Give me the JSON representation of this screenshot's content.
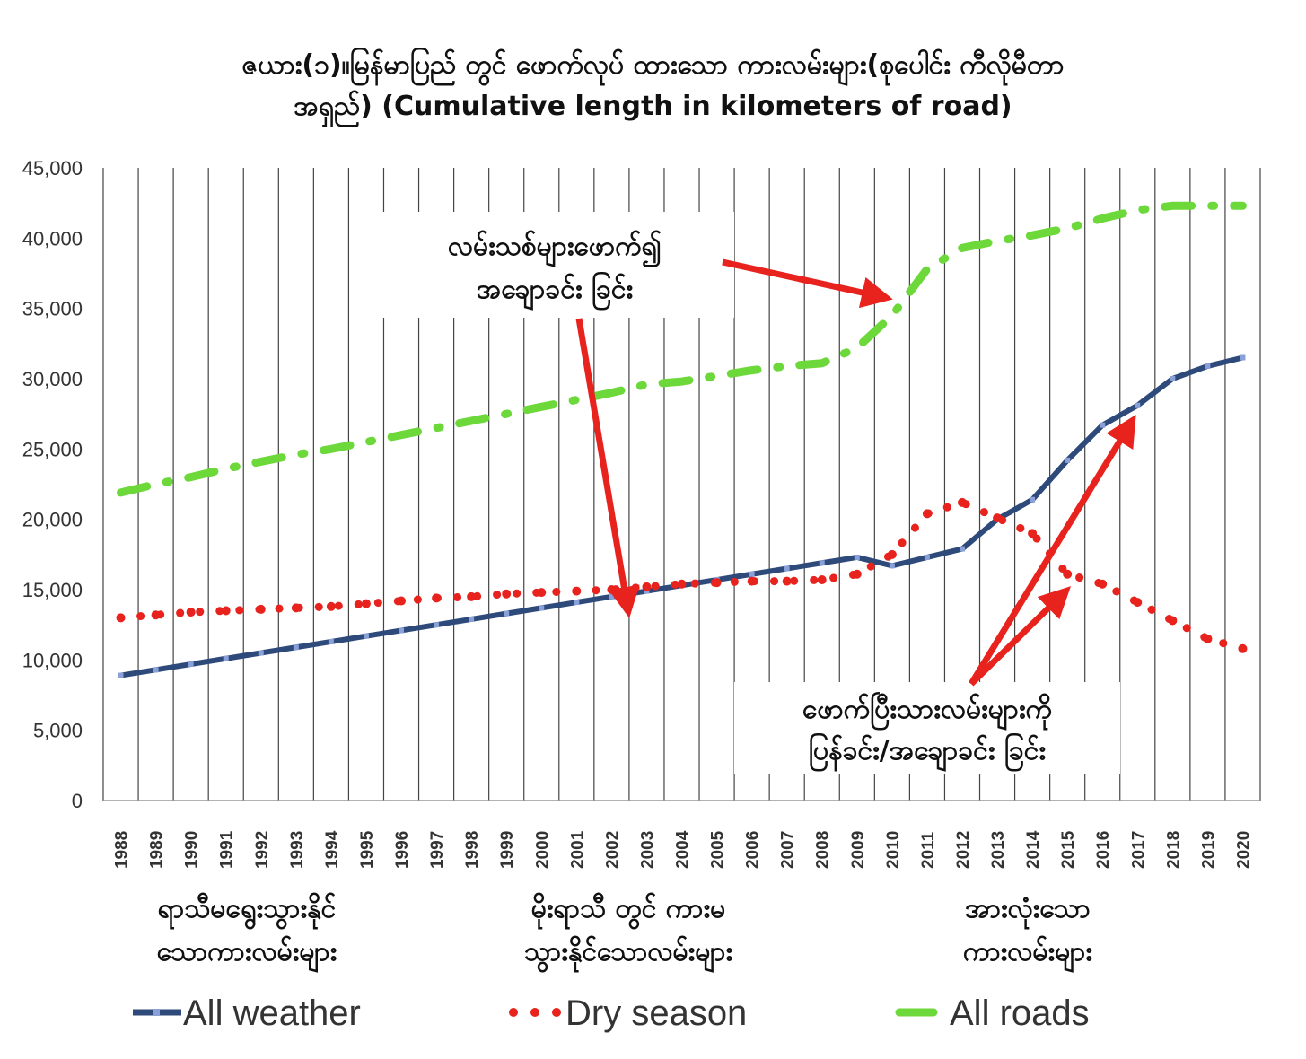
{
  "title_line_1": "ဇယား(၁)။မြန်မာပြည် တွင် ဖောက်လုပ် ထားသော ကားလမ်းများ(စုပေါင်း ကီလိုမီတာ",
  "title_line_2": "အရှည်) (Cumulative length in kilometers of road)",
  "chart_data": {
    "type": "line",
    "x": [
      1988,
      1989,
      1990,
      1991,
      1992,
      1993,
      1994,
      1995,
      1996,
      1997,
      1998,
      1999,
      2000,
      2001,
      2002,
      2003,
      2004,
      2005,
      2006,
      2007,
      2008,
      2009,
      2010,
      2011,
      2012,
      2013,
      2014,
      2015,
      2016,
      2017,
      2018,
      2019,
      2020
    ],
    "x_tick_labels": [
      "1988",
      "1989",
      "1990",
      "1991",
      "1992",
      "1993",
      "1994",
      "1995",
      "1996",
      "1997",
      "1998",
      "1999",
      "2000",
      "2001",
      "2002",
      "2003",
      "2004",
      "2005",
      "2006",
      "2007",
      "2008",
      "2009",
      "2010",
      "2011",
      "2012",
      "2013",
      "2014",
      "2015",
      "2016",
      "2017",
      "2018",
      "2019",
      "2020"
    ],
    "ylim": [
      0,
      45000
    ],
    "y_ticks": [
      0,
      5000,
      10000,
      15000,
      20000,
      25000,
      30000,
      35000,
      40000,
      45000
    ],
    "y_tick_labels": [
      "0",
      "5,000",
      "10,000",
      "15,000",
      "20,000",
      "25,000",
      "30,000",
      "35,000",
      "40,000",
      "45,000"
    ],
    "grid": "vertical",
    "legend_position": "bottom",
    "series": [
      {
        "name": "All weather",
        "color": "#2e4a7a",
        "style": "solid",
        "values": [
          8900,
          9300,
          9700,
          10100,
          10500,
          10900,
          11300,
          11700,
          12100,
          12500,
          12900,
          13300,
          13700,
          14100,
          14500,
          14900,
          15300,
          15700,
          16100,
          16500,
          16900,
          17300,
          16700,
          17300,
          17900,
          20000,
          21400,
          24200,
          26700,
          28100,
          30000,
          30900,
          31500
        ]
      },
      {
        "name": "Dry season",
        "color": "#e8231e",
        "style": "dotted",
        "values": [
          13000,
          13200,
          13400,
          13500,
          13600,
          13700,
          13800,
          14000,
          14200,
          14400,
          14500,
          14700,
          14800,
          14900,
          15000,
          15200,
          15400,
          15500,
          15600,
          15600,
          15700,
          16100,
          17500,
          20400,
          21200,
          20100,
          19000,
          16100,
          15400,
          14100,
          12800,
          11500,
          10800
        ]
      },
      {
        "name": "All roads",
        "color": "#6cd83a",
        "style": "dashdot",
        "values": [
          21900,
          22500,
          23000,
          23600,
          24100,
          24600,
          25000,
          25500,
          26000,
          26500,
          27000,
          27500,
          28000,
          28500,
          29000,
          29600,
          29800,
          30200,
          30600,
          30900,
          31100,
          32200,
          34500,
          37800,
          39300,
          39800,
          40200,
          40700,
          41400,
          42000,
          42300,
          42300,
          42300
        ]
      }
    ],
    "annotations": [
      {
        "lines": [
          "လမ်းသစ်များဖောက်၍",
          "အချောခင်း ခြင်း"
        ]
      },
      {
        "lines": [
          "ဖောက်ပြီးသားလမ်းများကို",
          "ပြန်ခင်း/အချောခင်း ခြင်း"
        ]
      }
    ]
  },
  "captions": [
    {
      "lines": [
        "ရာသီမရွေးသွားနိုင်",
        "သောကားလမ်းများ"
      ]
    },
    {
      "lines": [
        "မိုးရာသီ တွင် ကားမ",
        "သွားနိုင်သောလမ်းများ"
      ]
    },
    {
      "lines": [
        "အားလုံးသော",
        "ကားလမ်းများ"
      ]
    }
  ],
  "legend": [
    "All weather",
    "Dry season",
    "All roads"
  ],
  "colors": {
    "arrow": "#e8231e",
    "grid": "#444444",
    "baseline": "#999999"
  }
}
